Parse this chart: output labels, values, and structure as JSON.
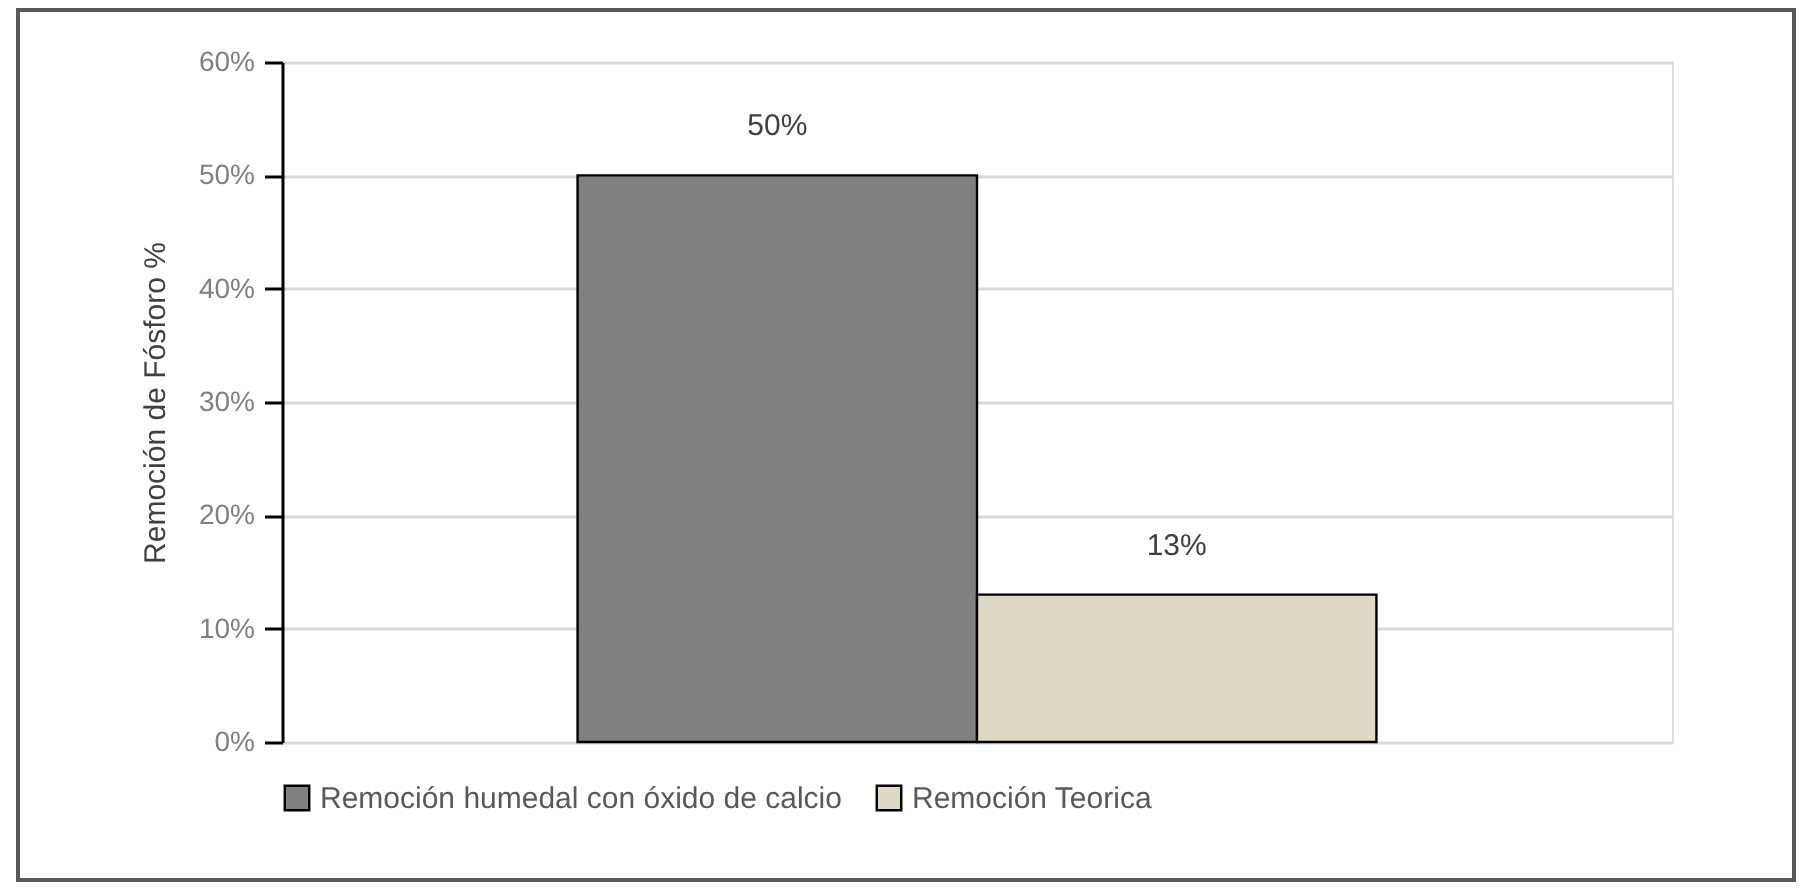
{
  "chart_data": {
    "type": "bar",
    "ylabel": "Remoción de Fósforo %",
    "categories": [
      null
    ],
    "series": [
      {
        "name": "Remoción humedal con óxido de calcio",
        "color": "#808080",
        "values": [
          50
        ],
        "value_labels": [
          "50%"
        ]
      },
      {
        "name": "Remoción Teorica",
        "color": "#ddd9c4",
        "values": [
          13
        ],
        "value_labels": [
          "13%"
        ]
      }
    ],
    "ylim": [
      0,
      60
    ],
    "yticks": [
      {
        "value": 0,
        "label": "0%"
      },
      {
        "value": 10,
        "label": "10%"
      },
      {
        "value": 20,
        "label": "20%"
      },
      {
        "value": 30,
        "label": "30%"
      },
      {
        "value": 40,
        "label": "40%"
      },
      {
        "value": 50,
        "label": "50%"
      },
      {
        "value": 60,
        "label": "60%"
      }
    ],
    "grid": "y",
    "legend": "bottom"
  }
}
